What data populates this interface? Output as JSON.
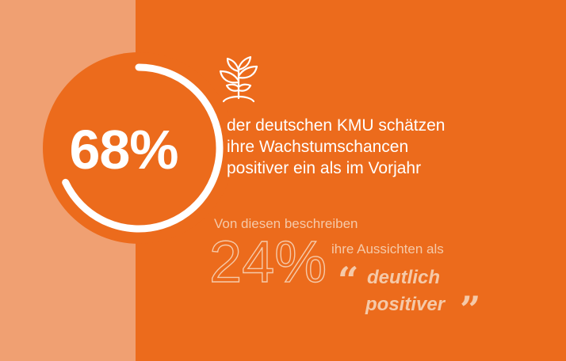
{
  "stat_main": {
    "value": "68%",
    "fraction": 0.68,
    "text_lines": [
      "der deutschen KMU schätzen",
      "ihre Wachstumschancen",
      "positiver ein als im Vorjahr"
    ]
  },
  "stat_sub": {
    "intro": "Von diesen beschreiben",
    "value": "24%",
    "text": "ihre Aussichten als",
    "emphasis_lines": [
      "deutlich",
      "positiver"
    ],
    "quote_open": "“",
    "quote_close": "”"
  },
  "icons": {
    "plant": "plant-sprout-icon"
  },
  "colors": {
    "background": "#ec6b1c",
    "left_band": "#f0a072",
    "ring": "#ffffff",
    "text_primary": "#ffffff",
    "text_secondary": "#f5c9a8"
  }
}
